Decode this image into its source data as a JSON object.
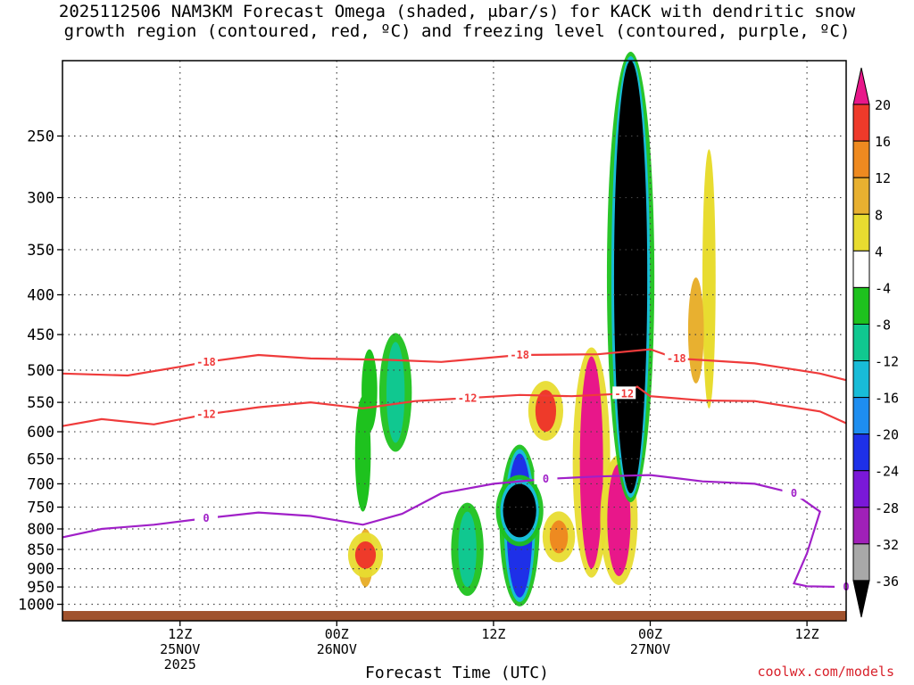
{
  "title_line1": "2025112506 NAM3KM Forecast Omega (shaded, μbar/s) for KACK with dendritic snow",
  "title_line2": "growth region (contoured, red, ºC) and freezing level (contoured, purple, ºC)",
  "credit": "coolwx.com/models",
  "chart_data": {
    "type": "heatmap",
    "title": "2025112506 NAM3KM Forecast Omega (shaded, μbar/s) for KACK with dendritic snow growth region (contoured, red, ºC) and freezing level (contoured, purple, ºC)",
    "xlabel": "Forecast Time (UTC)",
    "ylabel": "",
    "y_scale": "log-pressure (hPa), inverted",
    "ylim": [
      1050,
      200
    ],
    "xlim_hours": [
      -3,
      57
    ],
    "x_ticks": [
      {
        "hour": 6,
        "label": [
          "12Z",
          "25NOV",
          "2025"
        ]
      },
      {
        "hour": 18,
        "label": [
          "00Z",
          "26NOV"
        ]
      },
      {
        "hour": 30,
        "label": [
          "12Z"
        ]
      },
      {
        "hour": 42,
        "label": [
          "00Z",
          "27NOV"
        ]
      },
      {
        "hour": 54,
        "label": [
          "12Z"
        ]
      }
    ],
    "y_ticks": [
      250,
      300,
      350,
      400,
      450,
      500,
      550,
      600,
      650,
      700,
      750,
      800,
      850,
      900,
      950,
      1000
    ],
    "colorbar": {
      "labels": [
        "20",
        "16",
        "12",
        "8",
        "4",
        "-4",
        "-8",
        "-12",
        "-16",
        "-20",
        "-24",
        "-28",
        "-32",
        "-36"
      ],
      "colors": [
        "#e8178a",
        "#ee3a2a",
        "#ee8a20",
        "#e8b030",
        "#e8dc30",
        "#ffffff",
        "#1ec21e",
        "#10c890",
        "#18bcd8",
        "#1e8ef0",
        "#1e30e8",
        "#7a18d8",
        "#a020b8",
        "#a8a8a8",
        "#000000"
      ]
    },
    "ground_color": "#a0522d",
    "omega_cells": [
      {
        "h": 20.5,
        "p1": 470,
        "p2": 600,
        "v": -8
      },
      {
        "h": 20.0,
        "p1": 540,
        "p2": 760,
        "v": -8
      },
      {
        "h": 22.5,
        "p1": 460,
        "p2": 620,
        "v": -12
      },
      {
        "h": 20.2,
        "p1": 800,
        "p2": 950,
        "v": 8
      },
      {
        "h": 20.2,
        "p1": 830,
        "p2": 900,
        "v": 16
      },
      {
        "h": 28.0,
        "p1": 760,
        "p2": 950,
        "v": -12
      },
      {
        "h": 32.0,
        "p1": 640,
        "p2": 980,
        "v": -24
      },
      {
        "h": 32.0,
        "p1": 700,
        "p2": 820,
        "v": -36
      },
      {
        "h": 34.0,
        "p1": 530,
        "p2": 600,
        "v": 16
      },
      {
        "h": 35.0,
        "p1": 780,
        "p2": 860,
        "v": 12
      },
      {
        "h": 37.5,
        "p1": 480,
        "p2": 900,
        "v": 20
      },
      {
        "h": 39.6,
        "p1": 660,
        "p2": 920,
        "v": 20
      },
      {
        "h": 40.5,
        "p1": 200,
        "p2": 720,
        "v": -36
      },
      {
        "h": 46.5,
        "p1": 260,
        "p2": 560,
        "v": 4
      },
      {
        "h": 45.5,
        "p1": 380,
        "p2": 520,
        "v": 8
      }
    ],
    "contours": [
      {
        "name": "-18",
        "color": "#ef3b3b",
        "unit": "ºC",
        "x": [
          -3,
          2,
          6,
          8,
          12,
          16,
          22,
          26,
          32,
          38,
          42,
          44,
          50,
          55,
          57
        ],
        "p": [
          505,
          508,
          495,
          488,
          478,
          483,
          485,
          488,
          478,
          477,
          470,
          483,
          490,
          505,
          515
        ]
      },
      {
        "name": "-12",
        "color": "#ef3b3b",
        "unit": "ºC",
        "x": [
          -3,
          0,
          4,
          8,
          12,
          16,
          20,
          24,
          28,
          32,
          36,
          40,
          41,
          42,
          46,
          50,
          55,
          57
        ],
        "p": [
          590,
          578,
          587,
          570,
          558,
          550,
          560,
          548,
          543,
          538,
          540,
          536,
          525,
          540,
          547,
          548,
          565,
          585
        ]
      },
      {
        "name": "0",
        "color": "#a020c8",
        "unit": "ºC",
        "x": [
          -3,
          0,
          4,
          8,
          12,
          16,
          20,
          23,
          26,
          30,
          34,
          38,
          42,
          46,
          50,
          53,
          55,
          54,
          53,
          54,
          57
        ],
        "p": [
          820,
          800,
          790,
          775,
          762,
          770,
          790,
          765,
          720,
          700,
          690,
          685,
          682,
          695,
          700,
          720,
          760,
          860,
          940,
          948,
          950
        ]
      }
    ]
  }
}
